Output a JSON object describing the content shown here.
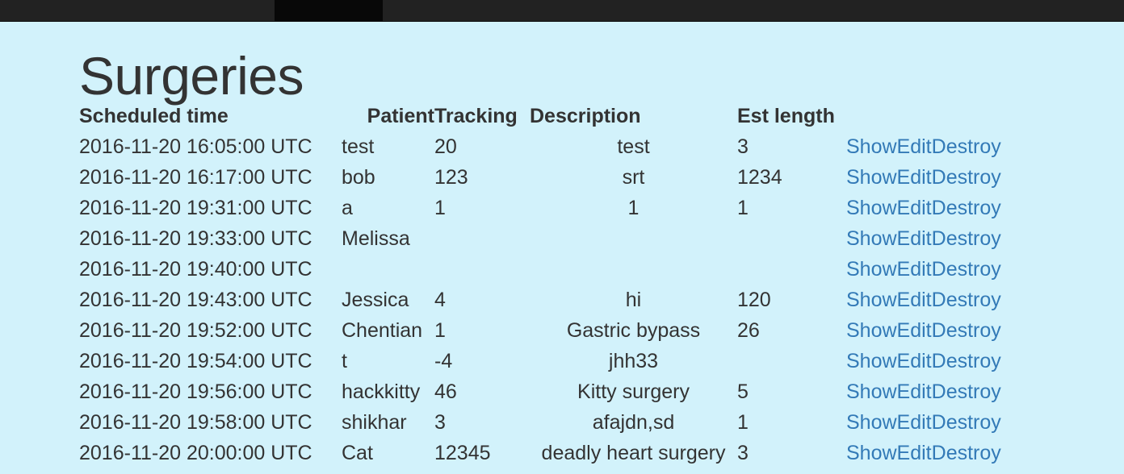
{
  "page": {
    "title": "Surgeries"
  },
  "table": {
    "headers": [
      "Scheduled time",
      "Patient",
      "Tracking",
      "Description",
      "Est length",
      ""
    ],
    "rows": [
      {
        "time": "2016-11-20 16:05:00 UTC",
        "patient": "test",
        "tracking": "20",
        "description": "test",
        "length": "3"
      },
      {
        "time": "2016-11-20 16:17:00 UTC",
        "patient": "bob",
        "tracking": "123",
        "description": "srt",
        "length": "1234"
      },
      {
        "time": "2016-11-20 19:31:00 UTC",
        "patient": "a",
        "tracking": "1",
        "description": "1",
        "length": "1"
      },
      {
        "time": "2016-11-20 19:33:00 UTC",
        "patient": "Melissa",
        "tracking": "",
        "description": "",
        "length": ""
      },
      {
        "time": "2016-11-20 19:40:00 UTC",
        "patient": "",
        "tracking": "",
        "description": "",
        "length": ""
      },
      {
        "time": "2016-11-20 19:43:00 UTC",
        "patient": "Jessica",
        "tracking": "4",
        "description": "hi",
        "length": "120"
      },
      {
        "time": "2016-11-20 19:52:00 UTC",
        "patient": "Chentian",
        "tracking": "1",
        "description": "Gastric bypass",
        "length": "26"
      },
      {
        "time": "2016-11-20 19:54:00 UTC",
        "patient": "t",
        "tracking": "-4",
        "description": "jhh33",
        "length": ""
      },
      {
        "time": "2016-11-20 19:56:00 UTC",
        "patient": "hackkitty",
        "tracking": "46",
        "description": "Kitty surgery",
        "length": "5"
      },
      {
        "time": "2016-11-20 19:58:00 UTC",
        "patient": "shikhar",
        "tracking": "3",
        "description": "afajdn,sd",
        "length": "1"
      },
      {
        "time": "2016-11-20 20:00:00 UTC",
        "patient": "Cat",
        "tracking": "12345",
        "description": "deadly heart surgery",
        "length": "3"
      }
    ],
    "actions": {
      "show": "Show",
      "edit": "Edit",
      "destroy": "Destroy"
    }
  },
  "colors": {
    "background": "#d2f2fb",
    "navbar": "#222222",
    "link": "#337ab7",
    "text": "#333333"
  }
}
